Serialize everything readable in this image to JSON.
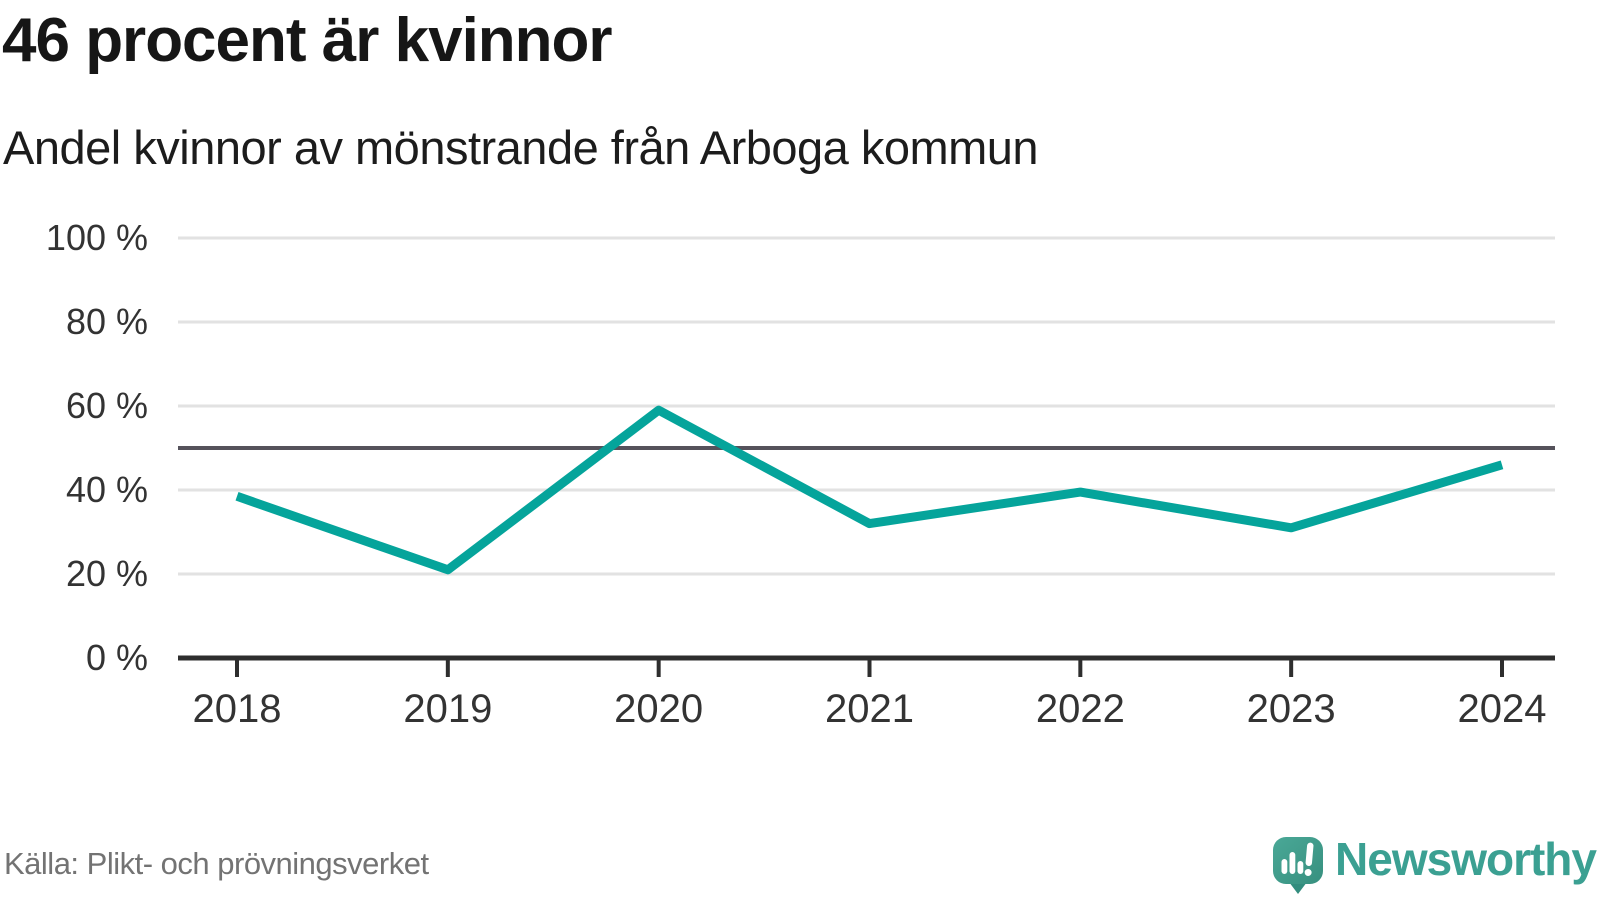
{
  "header": {
    "title": "46 procent är kvinnor",
    "subtitle": "Andel kvinnor av mönstrande från Arboga kommun"
  },
  "footer": {
    "source": "Källa: Plikt- och prövningsverket",
    "brand": "Newsworthy"
  },
  "colors": {
    "line": "#05a49b",
    "reference_line": "#55525b",
    "gridline": "#e2e2e2",
    "axis": "#2e2e2e",
    "tick_text": "#333333",
    "brand_teal": "#3ba092"
  },
  "chart_data": {
    "type": "line",
    "title": "46 procent är kvinnor",
    "subtitle": "Andel kvinnor av mönstrande från Arboga kommun",
    "x": [
      2018,
      2019,
      2020,
      2021,
      2022,
      2023,
      2024
    ],
    "series": [
      {
        "name": "Andel kvinnor av mönstrande, Arboga kommun",
        "values": [
          38.5,
          21,
          59,
          32,
          39.5,
          31,
          46
        ]
      }
    ],
    "xlabel": "",
    "ylabel": "",
    "ylim": [
      0,
      100
    ],
    "yticks": [
      0,
      20,
      40,
      60,
      80,
      100
    ],
    "ytick_labels": [
      "0 %",
      "20 %",
      "40 %",
      "60 %",
      "80 %",
      "100 %"
    ],
    "reference_line": 50,
    "grid": "horizontal",
    "legend": "none",
    "unit": "percent"
  }
}
